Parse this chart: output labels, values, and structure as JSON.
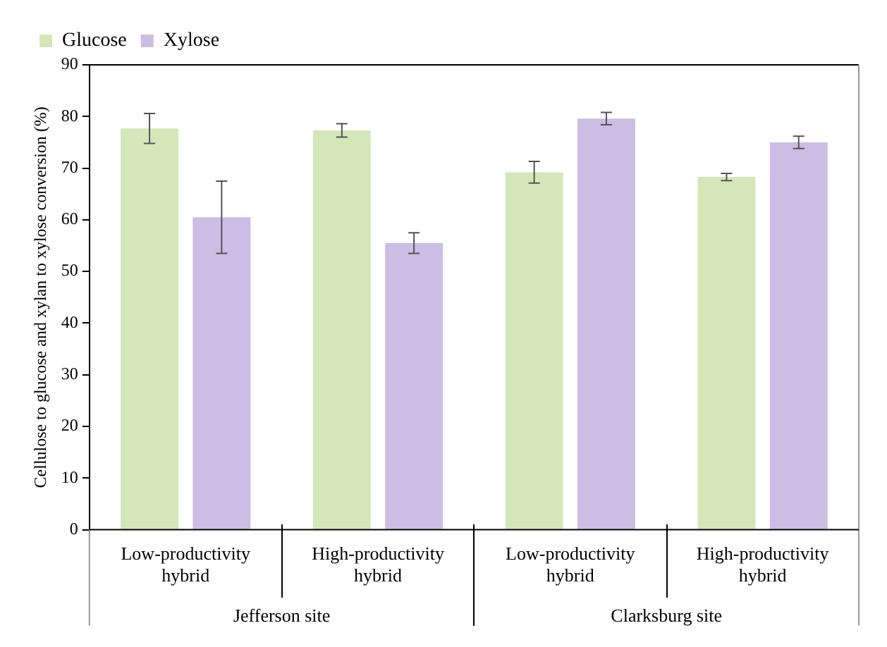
{
  "chart_data": {
    "type": "bar",
    "ylabel": "Cellulose to glucose and xylan to xylose conversion (%)",
    "categories": [
      "Low-productivity hybrid",
      "High-productivity hybrid",
      "Low-productivity hybrid",
      "High-productivity hybrid"
    ],
    "series": [
      {
        "name": "Glucose",
        "color": "#d4e7b8",
        "values": [
          77.7,
          77.3,
          69.2,
          68.3
        ],
        "errors": [
          2.9,
          1.3,
          2.1,
          0.7
        ]
      },
      {
        "name": "Xylose",
        "color": "#cbbde3",
        "values": [
          60.5,
          55.5,
          79.6,
          75.0
        ],
        "errors": [
          7,
          2,
          1.2,
          1.2
        ]
      }
    ],
    "annotations": [
      "Jefferson site",
      "Clarksburg site"
    ],
    "ylim": [
      0,
      90
    ],
    "yticks": [
      0,
      10,
      20,
      30,
      40,
      50,
      60,
      70,
      80,
      90
    ],
    "grid": false,
    "legend": "top left"
  }
}
